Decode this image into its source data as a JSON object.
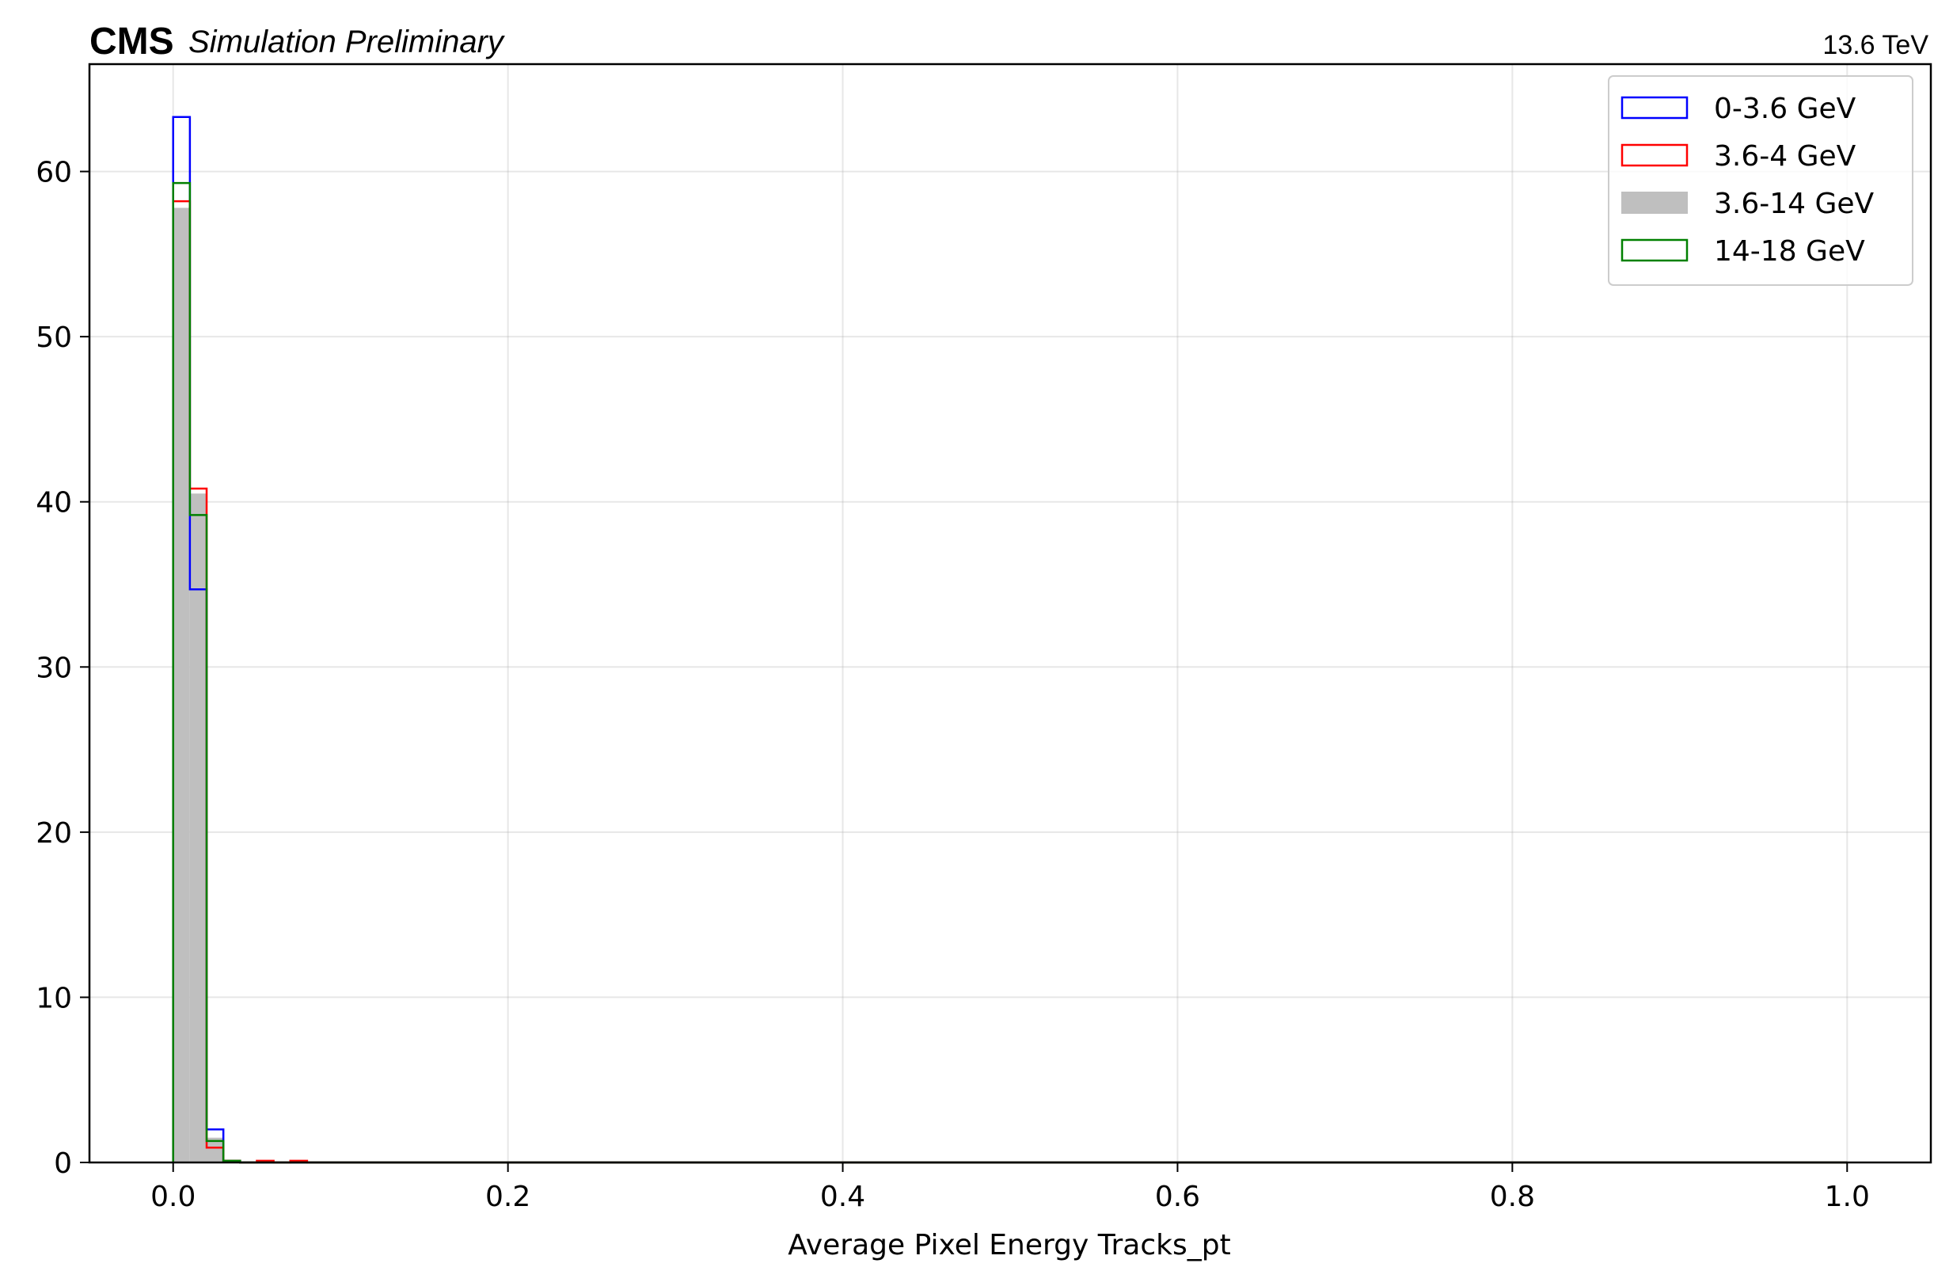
{
  "header": {
    "experiment": "CMS",
    "status": "Simulation Preliminary",
    "energy": "13.6 TeV"
  },
  "chart_data": {
    "type": "histogram",
    "xlabel": "Average Pixel Energy Tracks_pt",
    "ylabel": "",
    "xlim": [
      -0.05,
      1.05
    ],
    "ylim": [
      0,
      66.5
    ],
    "grid": true,
    "legend_position": "top-right",
    "xticks": [
      "0.0",
      "0.2",
      "0.4",
      "0.6",
      "0.8",
      "1.0"
    ],
    "yticks": [
      "0",
      "10",
      "20",
      "30",
      "40",
      "50",
      "60"
    ],
    "bin_width": 0.01,
    "bin_range": [
      0,
      1
    ],
    "series": [
      {
        "name": "0-3.6 GeV",
        "style": "step",
        "color": "#0000ff",
        "bin_starts": [
          0.0,
          0.01,
          0.02,
          0.03
        ],
        "values": [
          63.3,
          34.7,
          2.0,
          0.1
        ]
      },
      {
        "name": "3.6-4 GeV",
        "style": "step",
        "color": "#ff0000",
        "bin_starts": [
          0.0,
          0.01,
          0.02,
          0.03,
          0.05,
          0.07
        ],
        "values": [
          58.2,
          40.8,
          0.9,
          0.1,
          0.1,
          0.1
        ]
      },
      {
        "name": "3.6-14 GeV",
        "style": "filled",
        "color": "#bfbfbf",
        "bin_starts": [
          0.0,
          0.01,
          0.02,
          0.03
        ],
        "values": [
          57.8,
          40.5,
          1.5,
          0.1
        ]
      },
      {
        "name": "14-18 GeV",
        "style": "step",
        "color": "#008000",
        "bin_starts": [
          0.0,
          0.01,
          0.02,
          0.03
        ],
        "values": [
          59.3,
          39.2,
          1.3,
          0.1
        ]
      }
    ]
  }
}
